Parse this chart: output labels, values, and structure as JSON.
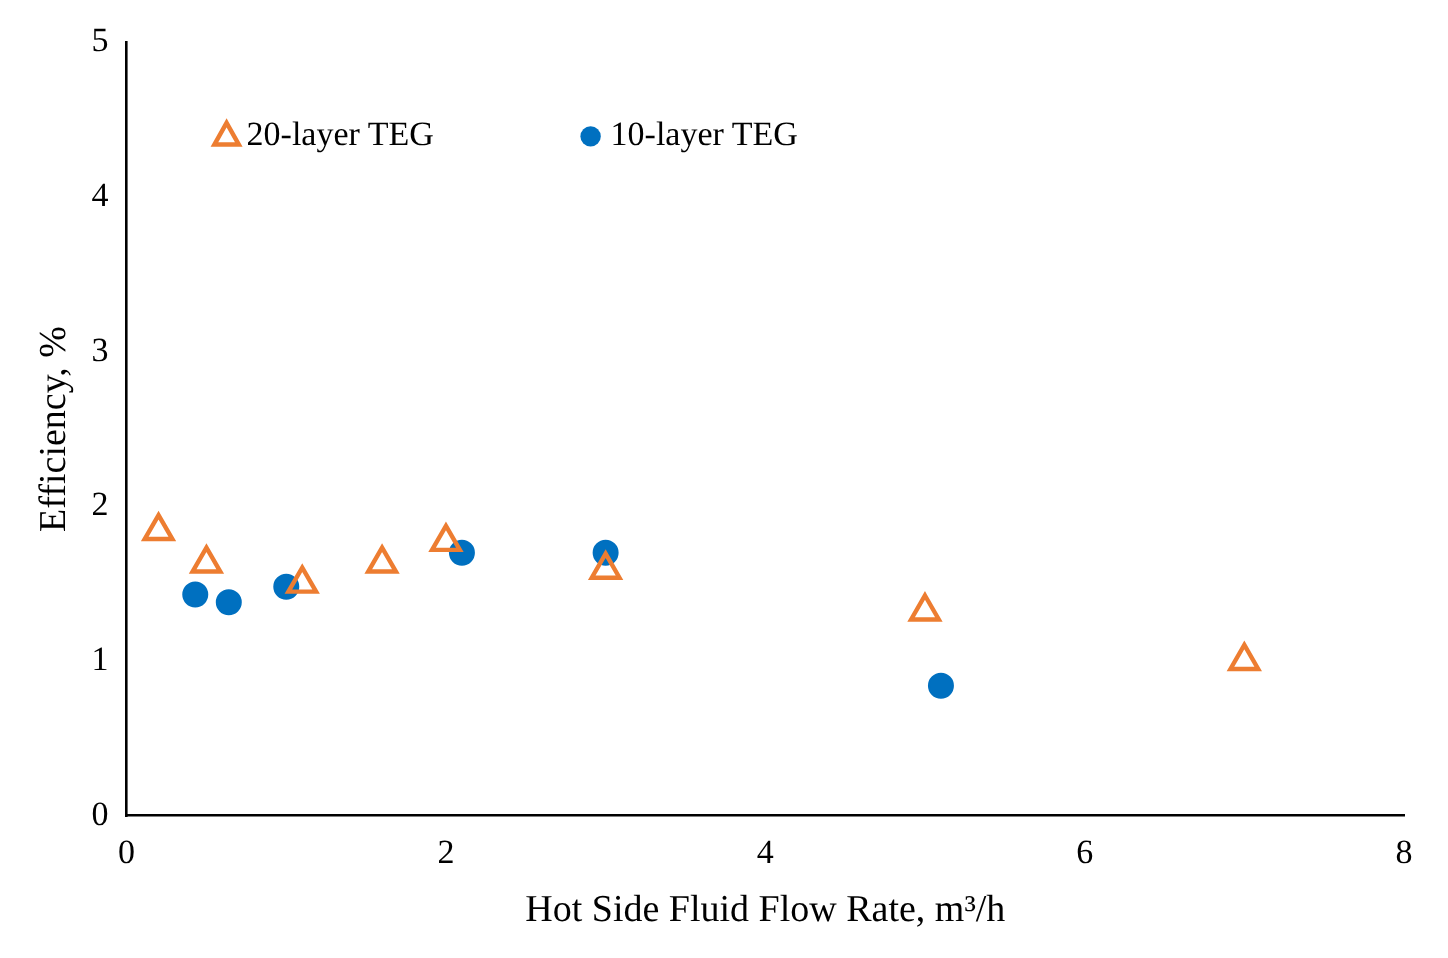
{
  "chart_data": {
    "type": "scatter",
    "xlabel": "Hot Side Fluid Flow Rate, m³/h",
    "ylabel": "Efficiency, %",
    "xlim": [
      0,
      8
    ],
    "xticks": [
      0,
      2,
      4,
      6,
      8
    ],
    "ylim": [
      0,
      5
    ],
    "yticks": [
      0,
      1,
      2,
      3,
      4,
      5
    ],
    "grid": false,
    "legend": "top left",
    "series": [
      {
        "name": "20-layer TEG",
        "color": "#ed7d31",
        "marker": "triangle",
        "x": [
          0.2,
          0.5,
          1.1,
          1.6,
          2.0,
          3.0,
          5.0,
          7.0
        ],
        "values": [
          1.84,
          1.63,
          1.5,
          1.63,
          1.77,
          1.59,
          1.32,
          1.0
        ]
      },
      {
        "name": "10-layer TEG",
        "color": "#0070c0",
        "marker": "circle",
        "x": [
          0.43,
          0.64,
          1.0,
          2.1,
          3.0,
          5.1
        ],
        "values": [
          1.43,
          1.38,
          1.48,
          1.7,
          1.7,
          0.84
        ]
      }
    ]
  }
}
